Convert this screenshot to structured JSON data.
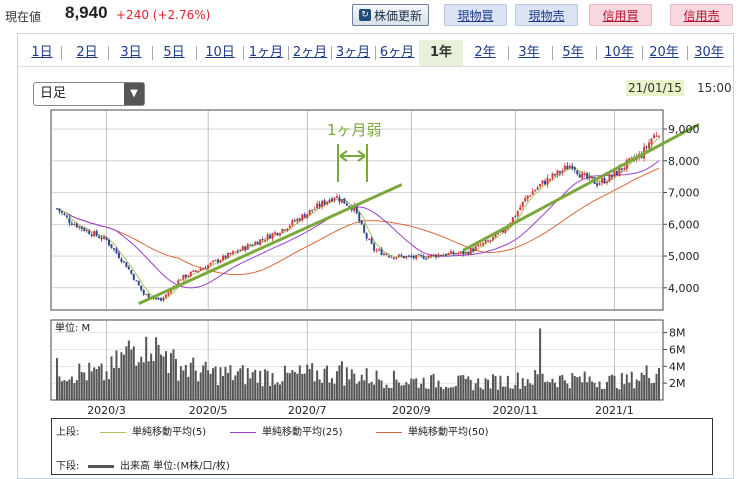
{
  "header": {
    "price_label": "現在値",
    "price_value": "8,940",
    "price_change": "+240 (+2.76%)",
    "update_button": "株価更新",
    "trade_buttons": [
      "現物買",
      "現物売",
      "信用買",
      "信用売"
    ]
  },
  "tabs": {
    "items": [
      "1日",
      "2日",
      "3日",
      "5日",
      "10日",
      "1ヶ月",
      "2ヶ月",
      "3ヶ月",
      "6ヶ月",
      "1年",
      "2年",
      "3年",
      "5年",
      "10年",
      "20年",
      "30年"
    ],
    "active": "1年"
  },
  "period_select": {
    "value": "日足"
  },
  "timestamp": {
    "date": "21/01/15",
    "time": "15:00"
  },
  "annotation": {
    "text": "1ヶ月弱"
  },
  "volume_unit_label": "単位: M",
  "legend": {
    "upper_label": "上段:",
    "lower_label": "下段:",
    "ma5": "単純移動平均(5)",
    "ma25": "単純移動平均(25)",
    "ma50": "単純移動平均(50)",
    "volume": "出来高 単位:(M株/口/枚)"
  },
  "colors": {
    "ma5": "#a9c55a",
    "ma25": "#9b3fd0",
    "ma50": "#d9683b",
    "up_candle": "#d13a3a",
    "down_candle": "#2e4a8c",
    "trendline": "#7aa83a",
    "volume_bar": "#555555"
  },
  "chart_data": {
    "type": "candlestick",
    "price_axis": {
      "ticks": [
        4000,
        5000,
        6000,
        7000,
        8000,
        9000
      ],
      "tick_labels": [
        "4,000",
        "5,000",
        "6,000",
        "7,000",
        "8,000",
        "9,000"
      ],
      "ylim": [
        3300,
        9600
      ]
    },
    "volume_axis": {
      "ticks": [
        2,
        4,
        6,
        8
      ],
      "tick_labels": [
        "2M",
        "4M",
        "6M",
        "8M"
      ],
      "ylim": [
        0,
        9.5
      ]
    },
    "x_tick_labels": [
      "2020/3",
      "2020/5",
      "2020/7",
      "2020/9",
      "2020/11",
      "2021/1"
    ],
    "close_keypoints": [
      [
        0,
        6500
      ],
      [
        5,
        6100
      ],
      [
        12,
        5800
      ],
      [
        20,
        5500
      ],
      [
        28,
        4700
      ],
      [
        35,
        3800
      ],
      [
        42,
        3600
      ],
      [
        50,
        4300
      ],
      [
        58,
        4600
      ],
      [
        66,
        4900
      ],
      [
        74,
        5200
      ],
      [
        82,
        5500
      ],
      [
        90,
        5800
      ],
      [
        100,
        6300
      ],
      [
        108,
        6700
      ],
      [
        112,
        6900
      ],
      [
        116,
        6700
      ],
      [
        120,
        6500
      ],
      [
        124,
        5700
      ],
      [
        128,
        5200
      ],
      [
        135,
        5000
      ],
      [
        145,
        4950
      ],
      [
        155,
        5050
      ],
      [
        165,
        5100
      ],
      [
        170,
        5300
      ],
      [
        175,
        5500
      ],
      [
        180,
        5800
      ],
      [
        185,
        6300
      ],
      [
        190,
        6900
      ],
      [
        196,
        7300
      ],
      [
        202,
        7600
      ],
      [
        208,
        7900
      ],
      [
        212,
        7500
      ],
      [
        218,
        7300
      ],
      [
        224,
        7500
      ],
      [
        230,
        7900
      ],
      [
        236,
        8200
      ],
      [
        240,
        8700
      ],
      [
        243,
        8940
      ]
    ],
    "volume_keypoints": [
      [
        0,
        3.5
      ],
      [
        20,
        3.0
      ],
      [
        35,
        7.5
      ],
      [
        45,
        4.5
      ],
      [
        60,
        3.2
      ],
      [
        90,
        2.8
      ],
      [
        110,
        3.2
      ],
      [
        140,
        2.3
      ],
      [
        170,
        2.0
      ],
      [
        195,
        2.6
      ],
      [
        230,
        2.2
      ],
      [
        243,
        3.6
      ]
    ],
    "volume_spikes": [
      [
        30,
        6.0
      ],
      [
        36,
        7.5
      ],
      [
        38,
        5.5
      ],
      [
        44,
        5.8
      ],
      [
        115,
        4.6
      ],
      [
        195,
        8.5
      ],
      [
        243,
        3.8
      ]
    ],
    "legend": [
      "単純移動平均(5)",
      "単純移動平均(25)",
      "単純移動平均(50)"
    ]
  }
}
